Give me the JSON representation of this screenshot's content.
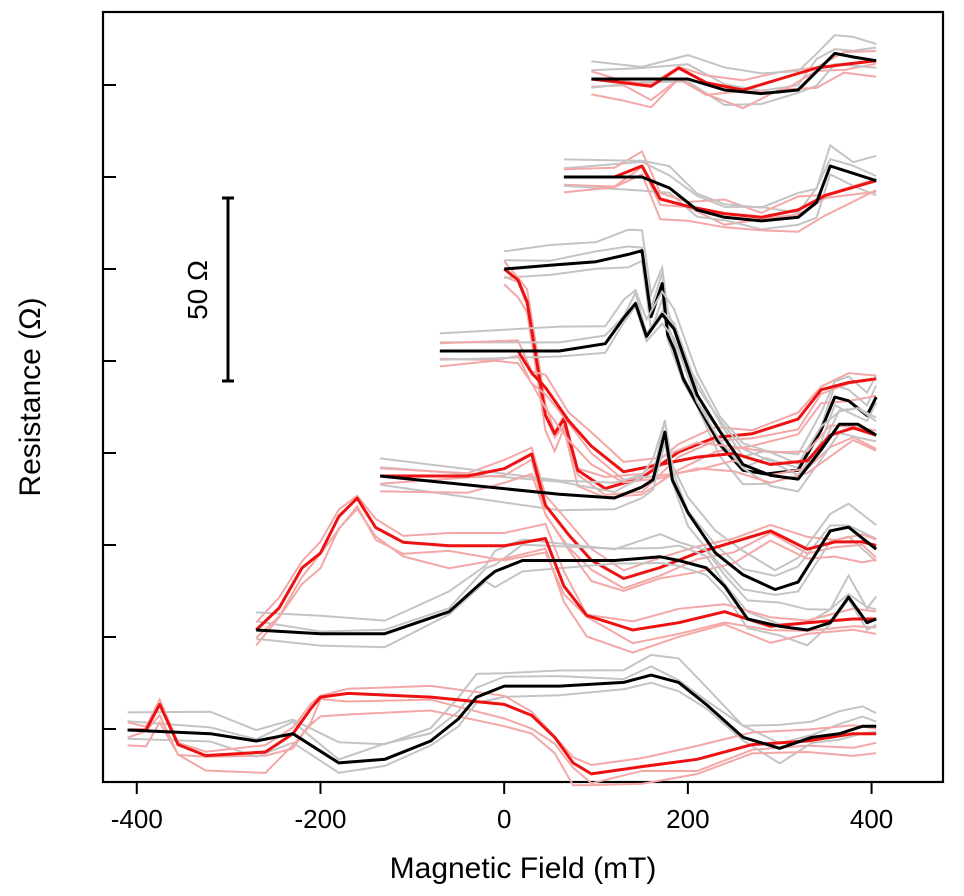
{
  "chart_data": {
    "type": "line",
    "title": "",
    "xlabel": "Magnetic Field (mT)",
    "ylabel": "Resistance (Ω)",
    "xlim": [
      -415,
      405
    ],
    "x_ticks": [
      "-400",
      "-200",
      "0",
      "200",
      "400"
    ],
    "x_tick_values": [
      -400,
      -200,
      0,
      200,
      400
    ],
    "y_ticks_labeled": false,
    "y_tick_count": 8,
    "scale_bar": {
      "label": "50 Ω",
      "value_ohm": 50
    },
    "colors": {
      "sweep_up": "#ee1111",
      "sweep_down": "#000000",
      "repeat_up": "#f4a7a7",
      "repeat_down": "#c4c4c4",
      "axis": "#000000"
    },
    "legend": "none",
    "note_units": "y values in Ω relative to each curve's baseline",
    "traces": [
      {
        "start_field": 95,
        "red": [
          [
            95,
            0
          ],
          [
            130,
            -1
          ],
          [
            160,
            -2
          ],
          [
            190,
            3
          ],
          [
            220,
            -1
          ],
          [
            260,
            -3
          ],
          [
            300,
            0
          ],
          [
            340,
            3
          ],
          [
            370,
            4
          ],
          [
            405,
            5
          ]
        ],
        "black": [
          [
            95,
            0
          ],
          [
            150,
            0
          ],
          [
            200,
            0
          ],
          [
            240,
            -3
          ],
          [
            280,
            -4
          ],
          [
            320,
            -3
          ],
          [
            340,
            2
          ],
          [
            360,
            7
          ],
          [
            380,
            6
          ],
          [
            405,
            5
          ]
        ]
      },
      {
        "start_field": 65,
        "red": [
          [
            65,
            0
          ],
          [
            120,
            0
          ],
          [
            150,
            3
          ],
          [
            170,
            -6
          ],
          [
            200,
            -8
          ],
          [
            240,
            -10
          ],
          [
            280,
            -11
          ],
          [
            320,
            -9
          ],
          [
            350,
            -5
          ],
          [
            405,
            -1
          ]
        ],
        "black": [
          [
            65,
            0
          ],
          [
            150,
            0
          ],
          [
            180,
            -3
          ],
          [
            210,
            -9
          ],
          [
            240,
            -11
          ],
          [
            280,
            -12
          ],
          [
            320,
            -11
          ],
          [
            340,
            -7
          ],
          [
            355,
            3
          ],
          [
            380,
            1
          ],
          [
            405,
            -1
          ]
        ]
      },
      {
        "start_field": 0,
        "red": [
          [
            0,
            0
          ],
          [
            15,
            -3
          ],
          [
            25,
            -9
          ],
          [
            45,
            -40
          ],
          [
            55,
            -45
          ],
          [
            65,
            -41
          ],
          [
            80,
            -55
          ],
          [
            110,
            -60
          ],
          [
            150,
            -57
          ],
          [
            190,
            -50
          ],
          [
            230,
            -46
          ],
          [
            270,
            -45
          ],
          [
            320,
            -41
          ],
          [
            345,
            -33
          ],
          [
            375,
            -31
          ],
          [
            405,
            -30
          ]
        ],
        "black": [
          [
            0,
            0
          ],
          [
            50,
            1
          ],
          [
            100,
            2
          ],
          [
            135,
            4
          ],
          [
            150,
            5
          ],
          [
            160,
            -13
          ],
          [
            172,
            -4
          ],
          [
            178,
            -18
          ],
          [
            185,
            -22
          ],
          [
            195,
            -30
          ],
          [
            210,
            -37
          ],
          [
            235,
            -48
          ],
          [
            260,
            -55
          ],
          [
            285,
            -56
          ],
          [
            320,
            -55
          ],
          [
            345,
            -44
          ],
          [
            360,
            -35
          ],
          [
            375,
            -36
          ],
          [
            395,
            -40
          ],
          [
            405,
            -35
          ]
        ]
      },
      {
        "start_field": -70,
        "red": [
          [
            -70,
            0
          ],
          [
            -10,
            0
          ],
          [
            15,
            0
          ],
          [
            30,
            -6
          ],
          [
            45,
            -10
          ],
          [
            70,
            -19
          ],
          [
            95,
            -26
          ],
          [
            130,
            -33
          ],
          [
            170,
            -31
          ],
          [
            210,
            -29
          ],
          [
            250,
            -28
          ],
          [
            290,
            -31
          ],
          [
            330,
            -30
          ],
          [
            355,
            -23
          ],
          [
            380,
            -21
          ],
          [
            405,
            -23
          ]
        ],
        "black": [
          [
            -70,
            0
          ],
          [
            60,
            0
          ],
          [
            110,
            2
          ],
          [
            130,
            9
          ],
          [
            143,
            13
          ],
          [
            155,
            4
          ],
          [
            172,
            10
          ],
          [
            185,
            6
          ],
          [
            210,
            -12
          ],
          [
            235,
            -22
          ],
          [
            260,
            -31
          ],
          [
            290,
            -34
          ],
          [
            320,
            -35
          ],
          [
            345,
            -27
          ],
          [
            365,
            -20
          ],
          [
            385,
            -20
          ],
          [
            405,
            -23
          ]
        ]
      },
      {
        "start_field": -135,
        "red": [
          [
            -135,
            0
          ],
          [
            -40,
            0
          ],
          [
            0,
            2
          ],
          [
            30,
            6
          ],
          [
            45,
            -8
          ],
          [
            70,
            -16
          ],
          [
            95,
            -23
          ],
          [
            130,
            -28
          ],
          [
            170,
            -25
          ],
          [
            210,
            -21
          ],
          [
            250,
            -18
          ],
          [
            290,
            -15
          ],
          [
            330,
            -20
          ],
          [
            360,
            -18
          ],
          [
            390,
            -18
          ],
          [
            405,
            -19
          ]
        ],
        "black": [
          [
            -135,
            0
          ],
          [
            60,
            -5
          ],
          [
            120,
            -6
          ],
          [
            150,
            -3
          ],
          [
            162,
            -1
          ],
          [
            175,
            12
          ],
          [
            183,
            -1
          ],
          [
            200,
            -10
          ],
          [
            230,
            -21
          ],
          [
            260,
            -27
          ],
          [
            295,
            -31
          ],
          [
            320,
            -29
          ],
          [
            355,
            -15
          ],
          [
            375,
            -14
          ],
          [
            405,
            -20
          ]
        ]
      },
      {
        "start_field": -270,
        "red": [
          [
            -270,
            0
          ],
          [
            -245,
            6
          ],
          [
            -220,
            17
          ],
          [
            -200,
            21
          ],
          [
            -180,
            31
          ],
          [
            -160,
            36
          ],
          [
            -140,
            28
          ],
          [
            -110,
            24
          ],
          [
            -60,
            23
          ],
          [
            0,
            23
          ],
          [
            45,
            25
          ],
          [
            65,
            12
          ],
          [
            90,
            4
          ],
          [
            140,
            0
          ],
          [
            190,
            2
          ],
          [
            240,
            5
          ],
          [
            290,
            1
          ],
          [
            330,
            2
          ],
          [
            380,
            3
          ],
          [
            405,
            3
          ]
        ],
        "black": [
          [
            -270,
            0
          ],
          [
            -200,
            -1
          ],
          [
            -130,
            -1
          ],
          [
            -60,
            5
          ],
          [
            -20,
            14
          ],
          [
            -10,
            16
          ],
          [
            20,
            19
          ],
          [
            120,
            19
          ],
          [
            170,
            20
          ],
          [
            190,
            19
          ],
          [
            220,
            17
          ],
          [
            240,
            12
          ],
          [
            265,
            3
          ],
          [
            300,
            1
          ],
          [
            330,
            0
          ],
          [
            355,
            2
          ],
          [
            375,
            9
          ],
          [
            395,
            2
          ],
          [
            405,
            3
          ]
        ]
      },
      {
        "start_field": -410,
        "red": [
          [
            -410,
            0
          ],
          [
            -390,
            0
          ],
          [
            -375,
            7
          ],
          [
            -355,
            -4
          ],
          [
            -325,
            -7
          ],
          [
            -260,
            -6
          ],
          [
            -230,
            -1
          ],
          [
            -210,
            6
          ],
          [
            -200,
            9
          ],
          [
            -170,
            10
          ],
          [
            -80,
            9
          ],
          [
            0,
            7
          ],
          [
            30,
            4
          ],
          [
            55,
            -2
          ],
          [
            75,
            -9
          ],
          [
            95,
            -12
          ],
          [
            150,
            -10
          ],
          [
            210,
            -8
          ],
          [
            270,
            -4
          ],
          [
            330,
            -3
          ],
          [
            380,
            -1
          ],
          [
            405,
            -1
          ]
        ],
        "black": [
          [
            -410,
            0
          ],
          [
            -320,
            -1
          ],
          [
            -270,
            -3
          ],
          [
            -230,
            -1
          ],
          [
            -180,
            -9
          ],
          [
            -130,
            -8
          ],
          [
            -80,
            -3
          ],
          [
            -50,
            3
          ],
          [
            -30,
            9
          ],
          [
            0,
            12
          ],
          [
            60,
            12
          ],
          [
            130,
            13
          ],
          [
            160,
            15
          ],
          [
            190,
            13
          ],
          [
            220,
            7
          ],
          [
            260,
            -2
          ],
          [
            300,
            -5
          ],
          [
            335,
            -2
          ],
          [
            365,
            -1
          ],
          [
            390,
            1
          ],
          [
            405,
            1
          ]
        ]
      }
    ]
  }
}
